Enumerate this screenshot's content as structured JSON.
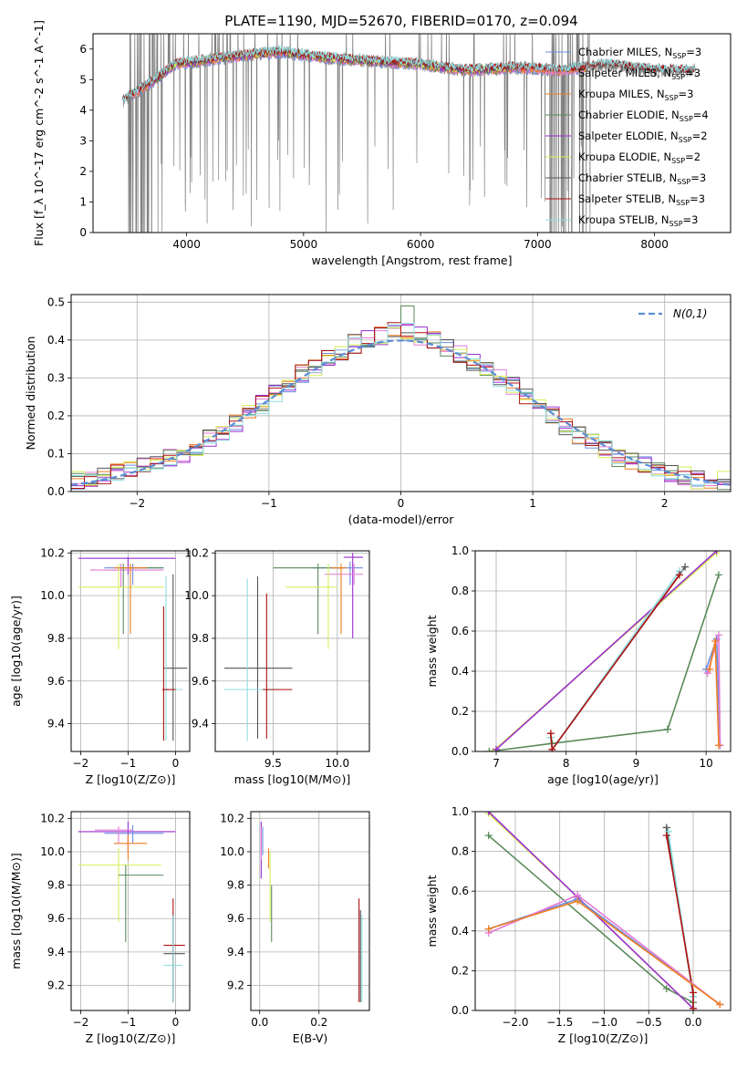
{
  "figure": {
    "title": "PLATE=1190, MJD=52670, FIBERID=0170, z=0.094"
  },
  "colors": {
    "Chabrier MILES": "#6b8de0",
    "Salpeter MILES": "#e37ad6",
    "Kroupa MILES": "#f07f20",
    "Chabrier ELODIE": "#5a8a5a",
    "Salpeter ELODIE": "#9b2fd0",
    "Kroupa ELODIE": "#d7ef5a",
    "Chabrier STELIB": "#555555",
    "Salpeter STELIB": "#b01010",
    "Kroupa STELIB": "#8fdde0",
    "data": "#808080",
    "normal": "#5b8dd6"
  },
  "chart_data": [
    {
      "id": "spectrum",
      "type": "line",
      "xlabel": "wavelength [Angstrom, rest frame]",
      "ylabel": "Flux [f_λ 10^-17 erg cm^-2 s^-1 A^-1]",
      "xlim": [
        3200,
        8650
      ],
      "ylim": [
        0,
        6.5
      ],
      "xticks": [
        4000,
        5000,
        6000,
        7000,
        8000
      ],
      "yticks": [
        0,
        1,
        2,
        3,
        4,
        5,
        6
      ],
      "legend_position": "top-right",
      "legend": [
        {
          "model": "Chabrier MILES",
          "label": "Chabrier MILES, N",
          "sub": "SSP",
          "tail": "=3"
        },
        {
          "model": "Salpeter MILES",
          "label": "Salpeter MILES, N",
          "sub": "SSP",
          "tail": "=3"
        },
        {
          "model": "Kroupa MILES",
          "label": "Kroupa MILES, N",
          "sub": "SSP",
          "tail": "=3"
        },
        {
          "model": "Chabrier ELODIE",
          "label": "Chabrier ELODIE, N",
          "sub": "SSP",
          "tail": "=4"
        },
        {
          "model": "Salpeter ELODIE",
          "label": "Salpeter ELODIE, N",
          "sub": "SSP",
          "tail": "=2"
        },
        {
          "model": "Kroupa ELODIE",
          "label": "Kroupa ELODIE, N",
          "sub": "SSP",
          "tail": "=2"
        },
        {
          "model": "Chabrier STELIB",
          "label": "Chabrier STELIB, N",
          "sub": "SSP",
          "tail": "=3"
        },
        {
          "model": "Salpeter STELIB",
          "label": "Salpeter STELIB, N",
          "sub": "SSP",
          "tail": "=3"
        },
        {
          "model": "Kroupa STELIB",
          "label": "Kroupa STELIB, N",
          "sub": "SSP",
          "tail": "=3"
        }
      ],
      "continuum": [
        [
          3450,
          4.3
        ],
        [
          3700,
          4.9
        ],
        [
          3900,
          5.5
        ],
        [
          4100,
          5.6
        ],
        [
          4300,
          5.7
        ],
        [
          4500,
          5.8
        ],
        [
          4800,
          5.9
        ],
        [
          5200,
          5.7
        ],
        [
          5600,
          5.6
        ],
        [
          6000,
          5.5
        ],
        [
          6400,
          5.3
        ],
        [
          6800,
          5.4
        ],
        [
          7200,
          5.3
        ],
        [
          7600,
          5.5
        ],
        [
          8000,
          5.3
        ],
        [
          8400,
          5.3
        ]
      ],
      "model_ranges": {
        "Chabrier MILES": [
          3540,
          7410
        ],
        "Salpeter MILES": [
          3540,
          7410
        ],
        "Kroupa MILES": [
          3540,
          7410
        ],
        "Chabrier ELODIE": [
          3700,
          6800
        ],
        "Salpeter ELODIE": [
          3700,
          6800
        ],
        "Kroupa ELODIE": [
          3700,
          6800
        ],
        "Chabrier STELIB": [
          3450,
          8350
        ],
        "Salpeter STELIB": [
          3450,
          8350
        ],
        "Kroupa STELIB": [
          3450,
          8350
        ]
      }
    },
    {
      "id": "residuals",
      "type": "line",
      "xlabel": "(data-model)/error",
      "ylabel": "Normed distribution",
      "xlim": [
        -2.5,
        2.5
      ],
      "ylim": [
        0,
        0.52
      ],
      "xticks": [
        -2,
        -1,
        0,
        1,
        2
      ],
      "yticks": [
        0.0,
        0.1,
        0.2,
        0.3,
        0.4,
        0.5
      ],
      "legend_position": "top-right",
      "normal_label": "N(0,1)",
      "bin_width": 0.1,
      "bins_center": [
        0.03,
        0.03,
        0.04,
        0.05,
        0.06,
        0.07,
        0.08,
        0.09,
        0.1,
        0.12,
        0.14,
        0.16,
        0.18,
        0.21,
        0.23,
        0.26,
        0.28,
        0.31,
        0.33,
        0.35,
        0.37,
        0.39,
        0.4,
        0.41,
        0.43,
        0.42,
        0.41,
        0.4,
        0.38,
        0.36,
        0.34,
        0.32,
        0.3,
        0.28,
        0.25,
        0.22,
        0.2,
        0.17,
        0.15,
        0.13,
        0.11,
        0.09,
        0.08,
        0.07,
        0.06,
        0.05,
        0.04,
        0.03,
        0.03,
        0.03
      ]
    },
    {
      "id": "age-vs-Z",
      "type": "scatter",
      "xlabel": "Z [log10(Z/Z⊙)]",
      "ylabel": "age [log10(age/yr)]",
      "xlim": [
        -2.2,
        0.3
      ],
      "ylim": [
        9.27,
        10.21
      ],
      "xticks": [
        -2,
        -1,
        0
      ],
      "yticks": [
        9.4,
        9.6,
        9.8,
        10.0,
        10.2
      ],
      "points": [
        {
          "model": "Salpeter ELODIE",
          "x": -1.0,
          "y": 10.175,
          "ex": [
            -2.05,
            0.0
          ],
          "ey": [
            10.1,
            10.18
          ]
        },
        {
          "model": "Chabrier MILES",
          "x": -0.9,
          "y": 10.13,
          "ex": [
            -1.5,
            -0.25
          ],
          "ey": [
            10.05,
            10.15
          ]
        },
        {
          "model": "Salpeter MILES",
          "x": -1.15,
          "y": 10.12,
          "ex": [
            -1.8,
            -0.25
          ],
          "ey": [
            10.04,
            10.15
          ]
        },
        {
          "model": "Chabrier ELODIE",
          "x": -1.1,
          "y": 10.13,
          "ex": [
            -1.2,
            -0.25
          ],
          "ey": [
            9.82,
            10.15
          ]
        },
        {
          "model": "Kroupa ELODIE",
          "x": -1.2,
          "y": 10.04,
          "ex": [
            -2.05,
            -0.25
          ],
          "ey": [
            9.75,
            10.15
          ]
        },
        {
          "model": "Kroupa MILES",
          "x": -0.95,
          "y": 10.13,
          "ex": [
            -1.3,
            -0.6
          ],
          "ey": [
            9.82,
            10.15
          ]
        },
        {
          "model": "Chabrier STELIB",
          "x": -0.05,
          "y": 9.66,
          "ex": [
            -0.25,
            0.25
          ],
          "ey": [
            9.32,
            10.1
          ]
        },
        {
          "model": "Kroupa STELIB",
          "x": -0.2,
          "y": 9.56,
          "ex": [
            -0.25,
            0.15
          ],
          "ey": [
            9.32,
            10.09
          ]
        },
        {
          "model": "Salpeter STELIB",
          "x": -0.25,
          "y": 9.56,
          "ex": [
            -0.28,
            0.0
          ],
          "ey": [
            9.32,
            9.95
          ]
        }
      ]
    },
    {
      "id": "age-vs-mass",
      "type": "scatter",
      "xlabel": "mass [log10(M/M⊙)]",
      "ylabel": "",
      "xlim": [
        9.05,
        10.25
      ],
      "ylim": [
        9.27,
        10.21
      ],
      "xticks": [
        9.5,
        10.0
      ],
      "yticks": [
        9.4,
        9.6,
        9.8,
        10.0,
        10.2
      ],
      "points": [
        {
          "model": "Salpeter ELODIE",
          "x": 10.12,
          "y": 10.18,
          "ex": [
            10.05,
            10.2
          ],
          "ey": [
            9.8,
            10.2
          ]
        },
        {
          "model": "Chabrier MILES",
          "x": 10.1,
          "y": 10.13,
          "ex": [
            9.8,
            10.2
          ],
          "ey": [
            10.05,
            10.16
          ]
        },
        {
          "model": "Salpeter MILES",
          "x": 10.13,
          "y": 10.1,
          "ex": [
            9.9,
            10.2
          ],
          "ey": [
            10.05,
            10.15
          ]
        },
        {
          "model": "Chabrier ELODIE",
          "x": 9.85,
          "y": 10.13,
          "ex": [
            9.5,
            10.05
          ],
          "ey": [
            9.82,
            10.15
          ]
        },
        {
          "model": "Kroupa ELODIE",
          "x": 9.93,
          "y": 10.04,
          "ex": [
            9.6,
            10.0
          ],
          "ey": [
            9.75,
            10.15
          ]
        },
        {
          "model": "Kroupa MILES",
          "x": 10.03,
          "y": 10.13,
          "ex": [
            9.95,
            10.07
          ],
          "ey": [
            9.82,
            10.15
          ]
        },
        {
          "model": "Chabrier STELIB",
          "x": 9.38,
          "y": 9.66,
          "ex": [
            9.12,
            9.65
          ],
          "ey": [
            9.33,
            10.09
          ]
        },
        {
          "model": "Kroupa STELIB",
          "x": 9.3,
          "y": 9.56,
          "ex": [
            9.12,
            9.55
          ],
          "ey": [
            9.32,
            10.08
          ]
        },
        {
          "model": "Salpeter STELIB",
          "x": 9.45,
          "y": 9.56,
          "ex": [
            9.42,
            9.65
          ],
          "ey": [
            9.33,
            10.01
          ]
        }
      ]
    },
    {
      "id": "weight-vs-age",
      "type": "line",
      "xlabel": "age [log10(age/yr)]",
      "ylabel": "mass weight",
      "xlim": [
        6.7,
        10.35
      ],
      "ylim": [
        0,
        1
      ],
      "xticks": [
        7,
        8,
        9,
        10
      ],
      "yticks": [
        0.0,
        0.2,
        0.4,
        0.6,
        0.8,
        1.0
      ],
      "series": [
        {
          "model": "Chabrier ELODIE",
          "x": [
            6.9,
            7.8,
            9.45,
            10.18
          ],
          "y": [
            0.0,
            0.04,
            0.11,
            0.88
          ]
        },
        {
          "model": "Kroupa ELODIE",
          "x": [
            6.95,
            10.15
          ],
          "y": [
            0.0,
            0.99
          ]
        },
        {
          "model": "Salpeter ELODIE",
          "x": [
            7.0,
            10.15
          ],
          "y": [
            0.01,
            1.0
          ]
        },
        {
          "model": "Chabrier STELIB",
          "x": [
            7.78,
            7.8,
            9.7
          ],
          "y": [
            0.07,
            0.01,
            0.92
          ]
        },
        {
          "model": "Kroupa STELIB",
          "x": [
            7.78,
            7.8,
            9.62
          ],
          "y": [
            0.07,
            0.01,
            0.9
          ]
        },
        {
          "model": "Salpeter STELIB",
          "x": [
            7.78,
            7.8,
            9.62
          ],
          "y": [
            0.09,
            0.01,
            0.88
          ]
        },
        {
          "model": "Chabrier MILES",
          "x": [
            10.0,
            10.15,
            10.2
          ],
          "y": [
            0.41,
            0.56,
            0.03
          ]
        },
        {
          "model": "Salpeter MILES",
          "x": [
            10.02,
            10.18,
            10.2
          ],
          "y": [
            0.39,
            0.58,
            0.03
          ]
        },
        {
          "model": "Kroupa MILES",
          "x": [
            10.05,
            10.13,
            10.18
          ],
          "y": [
            0.41,
            0.55,
            0.03
          ]
        }
      ]
    },
    {
      "id": "mass-vs-Z",
      "type": "scatter",
      "xlabel": "Z [log10(Z/Z⊙)]",
      "ylabel": "mass [log10(M/M⊙)]",
      "xlim": [
        -2.2,
        0.3
      ],
      "ylim": [
        9.05,
        10.24
      ],
      "xticks": [
        -2,
        -1,
        0
      ],
      "yticks": [
        9.2,
        9.4,
        9.6,
        9.8,
        10.0,
        10.2
      ],
      "points": [
        {
          "model": "Salpeter ELODIE",
          "x": -1.0,
          "y": 10.12,
          "ex": [
            -2.05,
            0.0
          ],
          "ey": [
            10.0,
            10.18
          ]
        },
        {
          "model": "Chabrier MILES",
          "x": -0.9,
          "y": 10.11,
          "ex": [
            -1.5,
            -0.25
          ],
          "ey": [
            10.05,
            10.16
          ]
        },
        {
          "model": "Salpeter MILES",
          "x": -1.2,
          "y": 10.13,
          "ex": [
            -1.7,
            -0.9
          ],
          "ey": [
            10.05,
            10.15
          ]
        },
        {
          "model": "Kroupa MILES",
          "x": -1.0,
          "y": 10.05,
          "ex": [
            -1.3,
            -0.6
          ],
          "ey": [
            9.95,
            10.1
          ]
        },
        {
          "model": "Kroupa ELODIE",
          "x": -1.2,
          "y": 9.92,
          "ex": [
            -2.05,
            -0.3
          ],
          "ey": [
            9.58,
            10.02
          ]
        },
        {
          "model": "Chabrier ELODIE",
          "x": -1.05,
          "y": 9.86,
          "ex": [
            -1.2,
            -0.25
          ],
          "ey": [
            9.46,
            9.92
          ]
        },
        {
          "model": "Salpeter STELIB",
          "x": -0.05,
          "y": 9.44,
          "ex": [
            -0.25,
            0.2
          ],
          "ey": [
            9.1,
            9.72
          ]
        },
        {
          "model": "Chabrier STELIB",
          "x": -0.05,
          "y": 9.39,
          "ex": [
            -0.25,
            0.2
          ],
          "ey": [
            9.1,
            9.62
          ]
        },
        {
          "model": "Kroupa STELIB",
          "x": -0.05,
          "y": 9.32,
          "ex": [
            -0.25,
            0.15
          ],
          "ey": [
            9.1,
            9.62
          ]
        }
      ]
    },
    {
      "id": "mass-vs-ebv",
      "type": "scatter",
      "xlabel": "E(B-V)",
      "ylabel": "",
      "xlim": [
        -0.03,
        0.37
      ],
      "ylim": [
        9.05,
        10.24
      ],
      "xticks": [
        0.0,
        0.2
      ],
      "yticks": [
        9.2,
        9.4,
        9.6,
        9.8,
        10.0,
        10.2
      ],
      "points": [
        {
          "model": "Salpeter ELODIE",
          "x": 0.005,
          "y": 10.1,
          "ey": [
            9.84,
            10.18
          ]
        },
        {
          "model": "Salpeter MILES",
          "x": 0.005,
          "y": 10.1,
          "ey": [
            9.95,
            10.15
          ]
        },
        {
          "model": "Chabrier MILES",
          "x": 0.01,
          "y": 10.05,
          "ey": [
            9.98,
            10.15
          ]
        },
        {
          "model": "Kroupa MILES",
          "x": 0.03,
          "y": 9.95,
          "ey": [
            9.9,
            10.02
          ]
        },
        {
          "model": "Kroupa ELODIE",
          "x": 0.035,
          "y": 9.75,
          "ey": [
            9.58,
            10.0
          ]
        },
        {
          "model": "Chabrier ELODIE",
          "x": 0.04,
          "y": 9.7,
          "ey": [
            9.46,
            9.8
          ]
        },
        {
          "model": "Salpeter STELIB",
          "x": 0.335,
          "y": 9.44,
          "ey": [
            9.1,
            9.72
          ]
        },
        {
          "model": "Chabrier STELIB",
          "x": 0.34,
          "y": 9.39,
          "ey": [
            9.1,
            9.65
          ]
        },
        {
          "model": "Kroupa STELIB",
          "x": 0.345,
          "y": 9.32,
          "ey": [
            9.1,
            9.62
          ]
        }
      ]
    },
    {
      "id": "weight-vs-Z",
      "type": "line",
      "xlabel": "Z [log10(Z/Z⊙)]",
      "ylabel": "mass weight",
      "xlim": [
        -2.45,
        0.42
      ],
      "ylim": [
        0,
        1
      ],
      "xticks": [
        -2.0,
        -1.5,
        -1.0,
        -0.5,
        0.0
      ],
      "yticks": [
        0.0,
        0.2,
        0.4,
        0.6,
        0.8,
        1.0
      ],
      "series": [
        {
          "model": "Chabrier ELODIE",
          "x": [
            -2.3,
            -0.3,
            0.0
          ],
          "y": [
            0.88,
            0.11,
            0.04
          ]
        },
        {
          "model": "Kroupa ELODIE",
          "x": [
            -2.3,
            -1.3,
            0.0
          ],
          "y": [
            0.99,
            0.57,
            0.01
          ]
        },
        {
          "model": "Salpeter ELODIE",
          "x": [
            -2.3,
            -1.3,
            0.0
          ],
          "y": [
            1.0,
            0.57,
            0.01
          ]
        },
        {
          "model": "Chabrier STELIB",
          "x": [
            -0.3,
            0.0,
            0.0
          ],
          "y": [
            0.92,
            0.07,
            0.01
          ]
        },
        {
          "model": "Kroupa STELIB",
          "x": [
            -0.28,
            0.0,
            0.0
          ],
          "y": [
            0.9,
            0.07,
            0.01
          ]
        },
        {
          "model": "Salpeter STELIB",
          "x": [
            -0.3,
            0.0,
            0.0
          ],
          "y": [
            0.88,
            0.09,
            0.01
          ]
        },
        {
          "model": "Chabrier MILES",
          "x": [
            -2.3,
            -1.3,
            0.3
          ],
          "y": [
            0.41,
            0.56,
            0.03
          ]
        },
        {
          "model": "Salpeter MILES",
          "x": [
            -2.3,
            -1.3,
            0.3
          ],
          "y": [
            0.39,
            0.58,
            0.03
          ]
        },
        {
          "model": "Kroupa MILES",
          "x": [
            -2.3,
            -1.3,
            0.3
          ],
          "y": [
            0.41,
            0.55,
            0.03
          ]
        }
      ]
    }
  ]
}
